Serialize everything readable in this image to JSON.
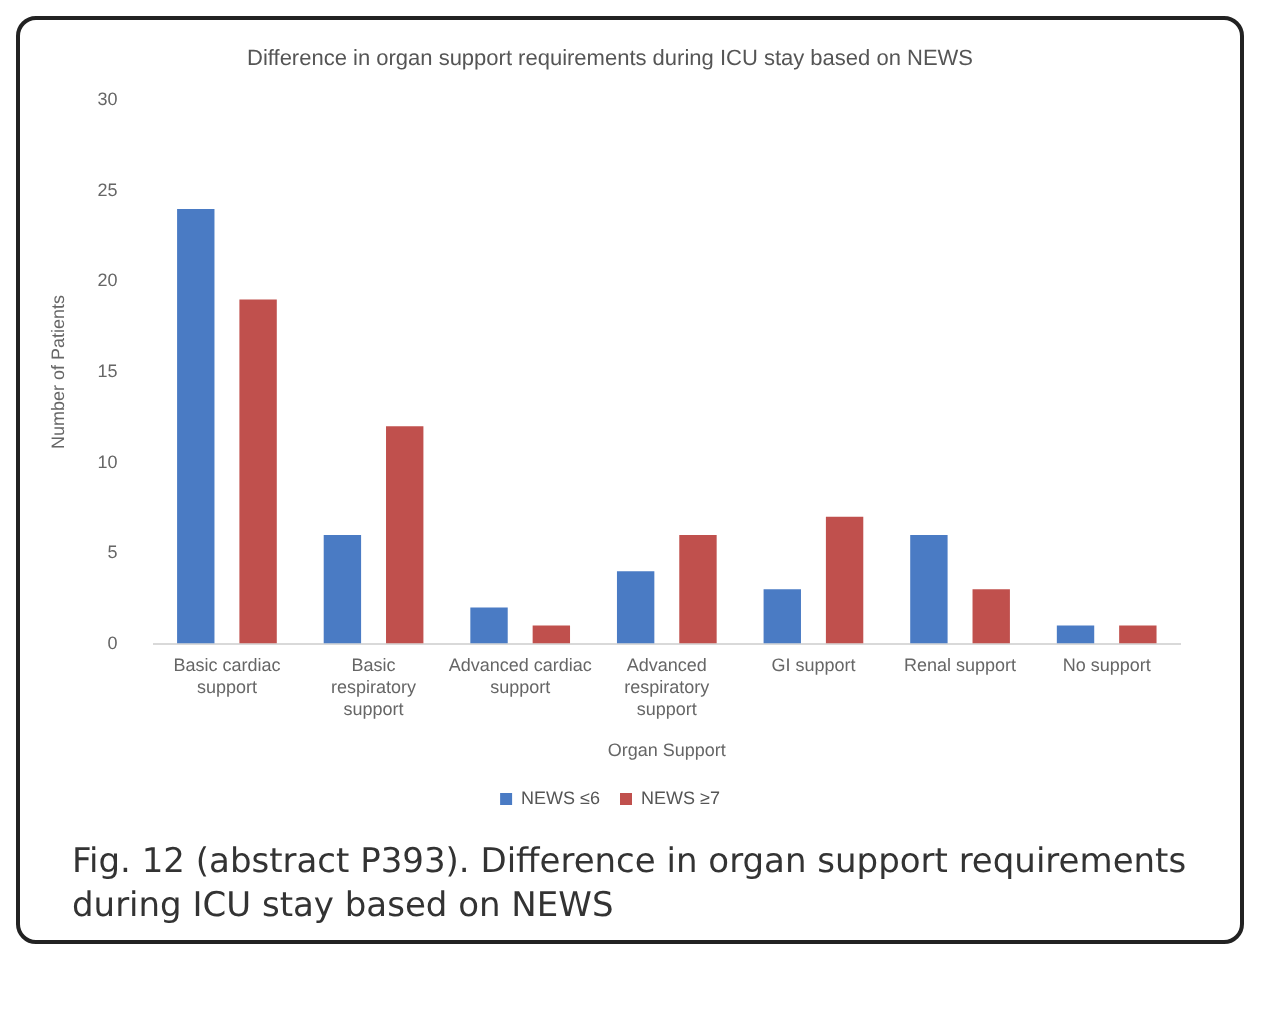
{
  "chart_data": {
    "type": "bar",
    "title": "Difference in organ support requirements during ICU stay based on NEWS",
    "xlabel": "Organ Support",
    "ylabel": "Number of Patients",
    "categories": [
      "Basic cardiac support",
      "Basic respiratory support",
      "Advanced cardiac support",
      "Advanced respiratory support",
      "GI support",
      "Renal support",
      "No support"
    ],
    "series": [
      {
        "name": "NEWS ≤6",
        "color": "#4a7bc4",
        "values": [
          24,
          6,
          2,
          4,
          3,
          6,
          1
        ]
      },
      {
        "name": "NEWS ≥7",
        "color": "#c0504d",
        "values": [
          19,
          12,
          1,
          6,
          7,
          3,
          1
        ]
      }
    ],
    "ylim": [
      0,
      30
    ],
    "yticks": [
      0,
      5,
      10,
      15,
      20,
      25,
      30
    ],
    "grid": false,
    "legend": "bottom",
    "annotations": [
      "Fig. 12 (abstract P393). Difference in organ support requirements during ICU stay based on NEWS"
    ]
  }
}
